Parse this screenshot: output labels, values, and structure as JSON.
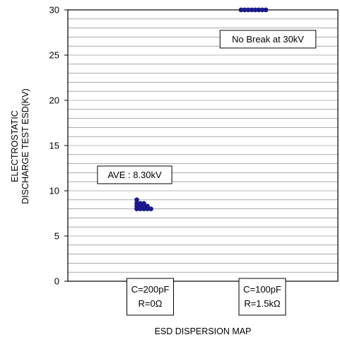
{
  "chart_data": {
    "type": "scatter",
    "xlabel": "ESD DISPERSION MAP",
    "ylabel_lines": [
      "ELECTROSTATIC",
      "DISCHARGE TEST ESD(KV)"
    ],
    "ylim": [
      0,
      30
    ],
    "yticks": [
      0,
      5,
      10,
      15,
      20,
      25,
      30
    ],
    "minor_grid_step": 1,
    "grid": true,
    "point_color": "#1a1a8c",
    "categories": [
      {
        "lines": [
          "C=200pF",
          "R=0Ω"
        ]
      },
      {
        "lines": [
          "C=100pF",
          "R=1.5kΩ"
        ]
      }
    ],
    "series": [
      {
        "category_index": 0,
        "points": [
          {
            "dx": 0,
            "y": 9.0
          },
          {
            "dx": 0,
            "y": 8.6
          },
          {
            "dx": 1,
            "y": 8.6
          },
          {
            "dx": 2,
            "y": 8.6
          },
          {
            "dx": 0,
            "y": 8.3
          },
          {
            "dx": 1,
            "y": 8.3
          },
          {
            "dx": 2,
            "y": 8.3
          },
          {
            "dx": 3,
            "y": 8.3
          },
          {
            "dx": 0,
            "y": 8.0
          },
          {
            "dx": 1,
            "y": 8.0
          },
          {
            "dx": 2,
            "y": 8.0
          },
          {
            "dx": 3,
            "y": 8.0
          },
          {
            "dx": 4,
            "y": 8.0
          }
        ]
      },
      {
        "category_index": 1,
        "points": [
          {
            "dx": 0,
            "y": 30
          },
          {
            "dx": 1,
            "y": 30
          },
          {
            "dx": 2,
            "y": 30
          },
          {
            "dx": 3,
            "y": 30
          },
          {
            "dx": 4,
            "y": 30
          },
          {
            "dx": 5,
            "y": 30
          },
          {
            "dx": 6,
            "y": 30
          },
          {
            "dx": 7,
            "y": 30
          }
        ]
      }
    ],
    "annotations": [
      {
        "text": "AVE : 8.30kV",
        "category_index": 0,
        "y": 11.8
      },
      {
        "text": "No Break at 30kV",
        "category_index": 1,
        "y": 26.8
      }
    ]
  }
}
